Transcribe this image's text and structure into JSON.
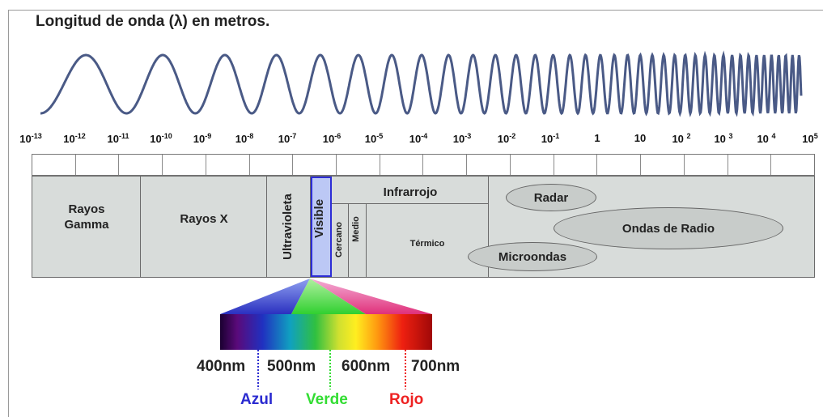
{
  "title": "Longitud de onda (λ) en metros.",
  "scale": {
    "ticks": [
      {
        "base": "10",
        "exp": "-13"
      },
      {
        "base": "10",
        "exp": "-12"
      },
      {
        "base": "10",
        "exp": "-11"
      },
      {
        "base": "10",
        "exp": "-10"
      },
      {
        "base": "10",
        "exp": "-9"
      },
      {
        "base": "10",
        "exp": "-8"
      },
      {
        "base": "10",
        "exp": "-7"
      },
      {
        "base": "10",
        "exp": "-6"
      },
      {
        "base": "10",
        "exp": "-5"
      },
      {
        "base": "10",
        "exp": "-4"
      },
      {
        "base": "10",
        "exp": "-3"
      },
      {
        "base": "10",
        "exp": "-2"
      },
      {
        "base": "10",
        "exp": "-1"
      },
      {
        "base": "1",
        "exp": ""
      },
      {
        "base": "10",
        "exp": ""
      },
      {
        "base": "10 ",
        "exp": "2"
      },
      {
        "base": "10 ",
        "exp": "3"
      },
      {
        "base": "10 ",
        "exp": "4"
      },
      {
        "base": "10",
        "exp": "5"
      }
    ]
  },
  "bands": {
    "gamma": {
      "line1": "Rayos",
      "line2": "Gamma"
    },
    "xray": "Rayos X",
    "uv": "Ultravioleta",
    "visible": "Visible",
    "infrared": "Infrarrojo",
    "near": "Cercano",
    "medium": "Medio",
    "thermal": "Térmico",
    "radar": "Radar",
    "radio": "Ondas de Radio",
    "microwave": "Microondas"
  },
  "spectrum": {
    "nm_labels": [
      "400nm",
      "500nm",
      "600nm",
      "700nm"
    ],
    "colors": [
      {
        "name": "Azul",
        "color": "#2a2ad0"
      },
      {
        "name": "Verde",
        "color": "#33dd33"
      },
      {
        "name": "Rojo",
        "color": "#ee2222"
      }
    ]
  }
}
